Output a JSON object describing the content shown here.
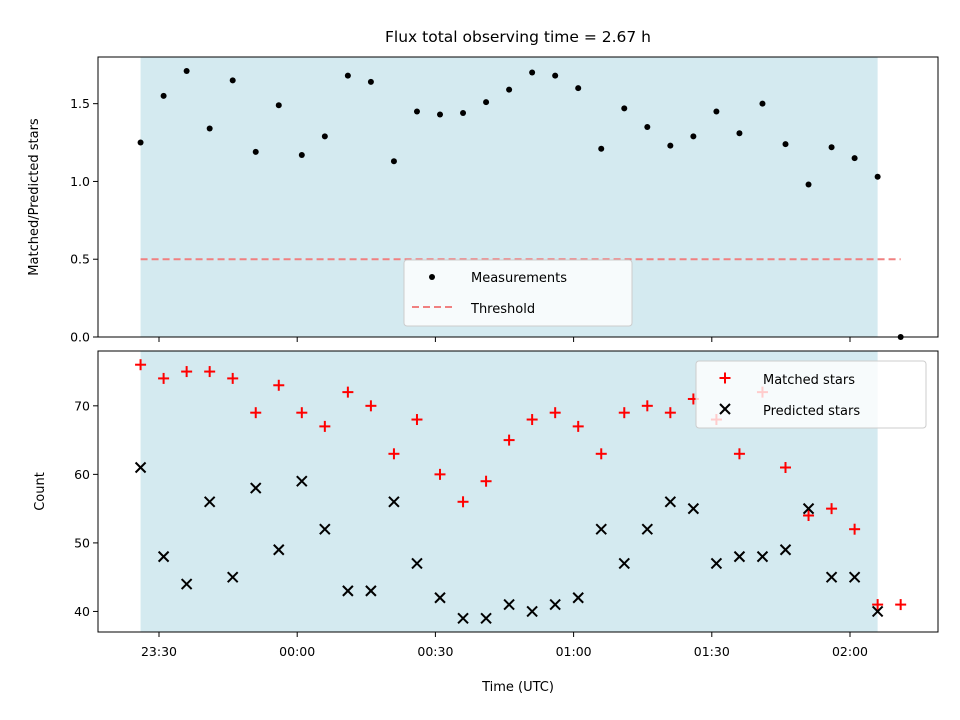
{
  "chart_data": {
    "title": "Flux total observing time = 2.67 h",
    "xlabel": "Time (UTC)",
    "x_ticks": [
      "23:30",
      "00:00",
      "00:30",
      "01:00",
      "01:30",
      "02:00"
    ],
    "colors": {
      "span": "#d4eaf0",
      "measurements": "#000000",
      "threshold": "#f08080",
      "matched": "#ff0000",
      "predicted": "#000000"
    },
    "panels": [
      {
        "type": "scatter",
        "ylabel": "Matched/Predicted stars",
        "ylim": [
          0,
          1.8
        ],
        "yticks": [
          "0.0",
          "0.5",
          "1.0",
          "1.5"
        ],
        "legend_placement": "bottom-center",
        "series": [
          {
            "name": "Measurements",
            "points": [
              [
                "23:26",
                1.25
              ],
              [
                "23:31",
                1.55
              ],
              [
                "23:36",
                1.71
              ],
              [
                "23:41",
                1.34
              ],
              [
                "23:46",
                1.65
              ],
              [
                "23:51",
                1.19
              ],
              [
                "23:56",
                1.49
              ],
              [
                "00:01",
                1.17
              ],
              [
                "00:06",
                1.29
              ],
              [
                "00:11",
                1.68
              ],
              [
                "00:16",
                1.64
              ],
              [
                "00:21",
                1.13
              ],
              [
                "00:26",
                1.45
              ],
              [
                "00:31",
                1.43
              ],
              [
                "00:36",
                1.44
              ],
              [
                "00:41",
                1.51
              ],
              [
                "00:46",
                1.59
              ],
              [
                "00:51",
                1.7
              ],
              [
                "00:56",
                1.68
              ],
              [
                "01:01",
                1.6
              ],
              [
                "01:06",
                1.21
              ],
              [
                "01:11",
                1.47
              ],
              [
                "01:16",
                1.35
              ],
              [
                "01:21",
                1.23
              ],
              [
                "01:26",
                1.29
              ],
              [
                "01:31",
                1.45
              ],
              [
                "01:36",
                1.31
              ],
              [
                "01:41",
                1.5
              ],
              [
                "01:46",
                1.24
              ],
              [
                "01:51",
                0.98
              ],
              [
                "01:56",
                1.22
              ],
              [
                "02:01",
                1.15
              ],
              [
                "02:06",
                1.03
              ],
              [
                "02:11",
                0.0
              ]
            ]
          },
          {
            "name": "Threshold",
            "line": [
              [
                "23:26",
                0.5
              ],
              [
                "02:11",
                0.5
              ]
            ]
          }
        ],
        "span": [
          "23:26",
          "02:06"
        ]
      },
      {
        "type": "scatter",
        "ylabel": "Count",
        "ylim": [
          37,
          78
        ],
        "yticks": [
          "40",
          "50",
          "60",
          "70"
        ],
        "legend_placement": "top-right",
        "series": [
          {
            "name": "Matched stars",
            "points": [
              [
                "23:26",
                76
              ],
              [
                "23:31",
                74
              ],
              [
                "23:36",
                75
              ],
              [
                "23:41",
                75
              ],
              [
                "23:46",
                74
              ],
              [
                "23:51",
                69
              ],
              [
                "23:56",
                73
              ],
              [
                "00:01",
                69
              ],
              [
                "00:06",
                67
              ],
              [
                "00:11",
                72
              ],
              [
                "00:16",
                70
              ],
              [
                "00:21",
                63
              ],
              [
                "00:26",
                68
              ],
              [
                "00:31",
                60
              ],
              [
                "00:36",
                56
              ],
              [
                "00:41",
                59
              ],
              [
                "00:46",
                65
              ],
              [
                "00:51",
                68
              ],
              [
                "00:56",
                69
              ],
              [
                "01:01",
                67
              ],
              [
                "01:06",
                63
              ],
              [
                "01:11",
                69
              ],
              [
                "01:16",
                70
              ],
              [
                "01:21",
                69
              ],
              [
                "01:26",
                71
              ],
              [
                "01:31",
                68
              ],
              [
                "01:36",
                63
              ],
              [
                "01:41",
                72
              ],
              [
                "01:46",
                61
              ],
              [
                "01:51",
                54
              ],
              [
                "01:56",
                55
              ],
              [
                "02:01",
                52
              ],
              [
                "02:06",
                41
              ],
              [
                "02:11",
                41
              ]
            ]
          },
          {
            "name": "Predicted stars",
            "points": [
              [
                "23:26",
                61
              ],
              [
                "23:31",
                48
              ],
              [
                "23:36",
                44
              ],
              [
                "23:41",
                56
              ],
              [
                "23:46",
                45
              ],
              [
                "23:51",
                58
              ],
              [
                "23:56",
                49
              ],
              [
                "00:01",
                59
              ],
              [
                "00:06",
                52
              ],
              [
                "00:11",
                43
              ],
              [
                "00:16",
                43
              ],
              [
                "00:21",
                56
              ],
              [
                "00:26",
                47
              ],
              [
                "00:31",
                42
              ],
              [
                "00:36",
                39
              ],
              [
                "00:41",
                39
              ],
              [
                "00:46",
                41
              ],
              [
                "00:51",
                40
              ],
              [
                "00:56",
                41
              ],
              [
                "01:01",
                42
              ],
              [
                "01:06",
                52
              ],
              [
                "01:11",
                47
              ],
              [
                "01:16",
                52
              ],
              [
                "01:21",
                56
              ],
              [
                "01:26",
                55
              ],
              [
                "01:31",
                47
              ],
              [
                "01:36",
                48
              ],
              [
                "01:41",
                48
              ],
              [
                "01:46",
                49
              ],
              [
                "01:51",
                55
              ],
              [
                "01:56",
                45
              ],
              [
                "02:01",
                45
              ],
              [
                "02:06",
                40
              ]
            ]
          }
        ],
        "span": [
          "23:26",
          "02:06"
        ]
      }
    ]
  }
}
